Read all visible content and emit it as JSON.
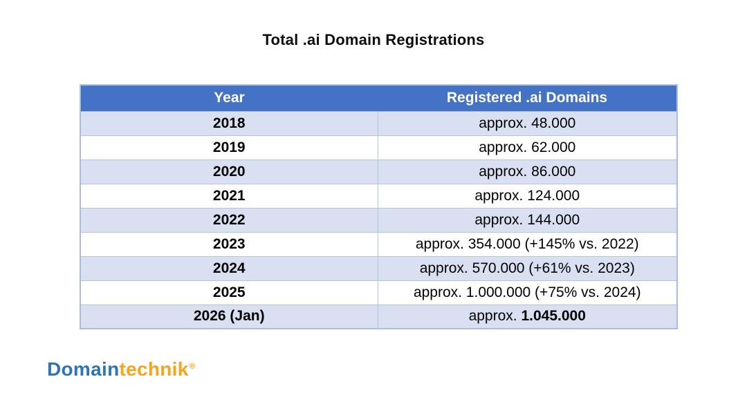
{
  "title": "Total .ai Domain Registrations",
  "table": {
    "headers": [
      "Year",
      "Registered .ai Domains"
    ],
    "rows": [
      {
        "year": "2018",
        "value": "approx. 48.000"
      },
      {
        "year": "2019",
        "value": "approx. 62.000"
      },
      {
        "year": "2020",
        "value": "approx. 86.000"
      },
      {
        "year": "2021",
        "value": "approx. 124.000"
      },
      {
        "year": "2022",
        "value": "approx. 144.000"
      },
      {
        "year": "2023",
        "value": "approx. 354.000 (+145% vs. 2022)"
      },
      {
        "year": "2024",
        "value": "approx. 570.000 (+61% vs. 2023)"
      },
      {
        "year": "2025",
        "value": "approx. 1.000.000 (+75% vs. 2024)"
      },
      {
        "year": "2026 (Jan)",
        "value_prefix": "approx. ",
        "value_strong": "1.045.000"
      }
    ],
    "colors": {
      "header_background": "#4472c4",
      "header_text": "#ffffff",
      "banded_row_background": "#d9e0f2",
      "plain_row_background": "#ffffff",
      "border": "#a9bce0",
      "body_text": "#000000"
    }
  },
  "logo": {
    "text_primary": "Domain",
    "text_secondary": "technik",
    "registered_mark": "®",
    "primary_color": "#2e75b6",
    "secondary_color": "#f7a41d"
  },
  "chart_data": {
    "type": "table",
    "title": "Total .ai Domain Registrations",
    "columns": [
      "Year",
      "Registered .ai Domains"
    ],
    "rows": [
      [
        "2018",
        "approx. 48.000"
      ],
      [
        "2019",
        "approx. 62.000"
      ],
      [
        "2020",
        "approx. 86.000"
      ],
      [
        "2021",
        "approx. 124.000"
      ],
      [
        "2022",
        "approx. 144.000"
      ],
      [
        "2023",
        "approx. 354.000 (+145% vs. 2022)"
      ],
      [
        "2024",
        "approx. 570.000 (+61% vs. 2023)"
      ],
      [
        "2025",
        "approx. 1.000.000 (+75% vs. 2024)"
      ],
      [
        "2026 (Jan)",
        "approx. 1.045.000"
      ]
    ],
    "numeric": {
      "years": [
        "2018",
        "2019",
        "2020",
        "2021",
        "2022",
        "2023",
        "2024",
        "2025",
        "2026 (Jan)"
      ],
      "registrations": [
        48000,
        62000,
        86000,
        124000,
        144000,
        354000,
        570000,
        1000000,
        1045000
      ],
      "yoy_growth_notes": {
        "2023": "+145% vs. 2022",
        "2024": "+61% vs. 2023",
        "2025": "+75% vs. 2024"
      }
    }
  }
}
